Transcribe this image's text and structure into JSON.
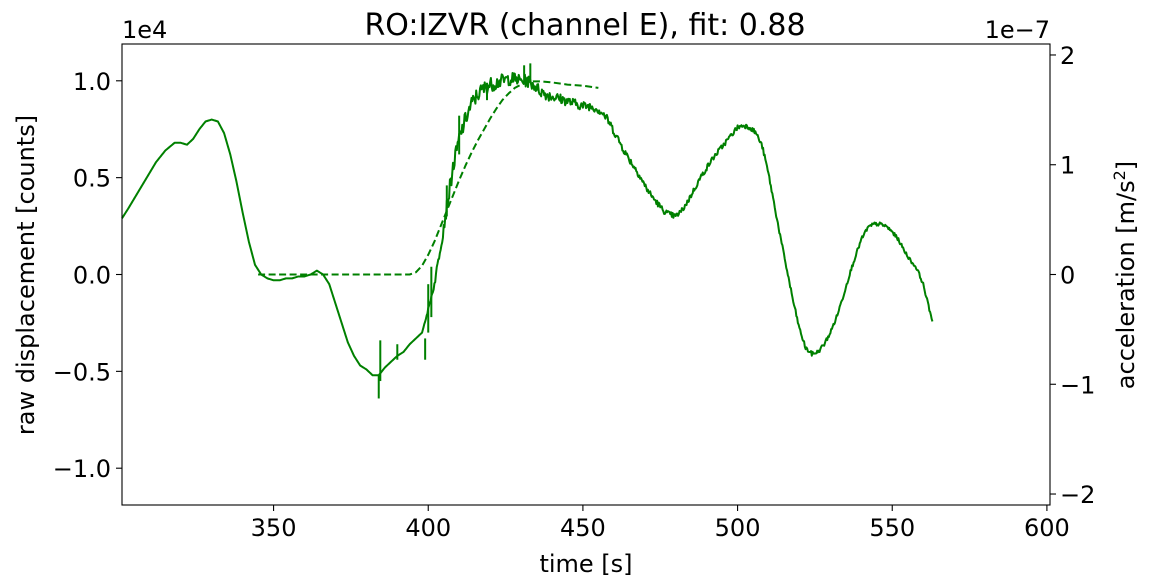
{
  "chart_data": {
    "type": "line",
    "title": "RO:IZVR  (channel E), fit: 0.88",
    "xlabel": "time [s]",
    "ylabel_left": "raw displacement [counts]",
    "ylabel_right": "acceleration [m/s",
    "ylabel_right_sup": "2",
    "ylabel_right_close": "]",
    "offset_left": "1e4",
    "offset_right": "1e−7",
    "xlim": [
      301,
      601
    ],
    "ylim_left": [
      -1.19,
      1.19
    ],
    "ylim_right": [
      -2.1,
      2.1
    ],
    "grid": false,
    "x_ticks": [
      {
        "value": 350,
        "label": "350"
      },
      {
        "value": 400,
        "label": "400"
      },
      {
        "value": 450,
        "label": "450"
      },
      {
        "value": 500,
        "label": "500"
      },
      {
        "value": 550,
        "label": "550"
      },
      {
        "value": 600,
        "label": "600"
      }
    ],
    "y_left_ticks": [
      {
        "value": 1.0,
        "label": "1.0"
      },
      {
        "value": 0.5,
        "label": "0.5"
      },
      {
        "value": 0.0,
        "label": "0.0"
      },
      {
        "value": -0.5,
        "label": "−0.5"
      },
      {
        "value": -1.0,
        "label": "−1.0"
      }
    ],
    "y_right_ticks": [
      {
        "value": 2,
        "label": "2"
      },
      {
        "value": 1,
        "label": "1"
      },
      {
        "value": 0,
        "label": "0"
      },
      {
        "value": -1,
        "label": "−1"
      },
      {
        "value": -2,
        "label": "−2"
      }
    ],
    "series": [
      {
        "axis": "left",
        "style": "solid",
        "color": "#008000",
        "noise": [
          [
            398,
            0.0
          ],
          [
            403,
            0.02
          ],
          [
            405,
            0.04
          ],
          [
            415,
            0.04
          ],
          [
            425,
            0.035
          ],
          [
            435,
            0.03
          ],
          [
            445,
            0.025
          ],
          [
            460,
            0.02
          ],
          [
            475,
            0.015
          ],
          [
            510,
            0.012
          ],
          [
            563,
            0.008
          ]
        ],
        "points": [
          [
            301,
            0.29
          ],
          [
            303,
            0.34
          ],
          [
            306,
            0.42
          ],
          [
            309,
            0.5
          ],
          [
            312,
            0.58
          ],
          [
            315,
            0.64
          ],
          [
            318,
            0.68
          ],
          [
            320,
            0.68
          ],
          [
            322,
            0.67
          ],
          [
            324,
            0.7
          ],
          [
            326,
            0.75
          ],
          [
            328,
            0.79
          ],
          [
            330,
            0.8
          ],
          [
            332,
            0.79
          ],
          [
            334,
            0.73
          ],
          [
            336,
            0.62
          ],
          [
            338,
            0.48
          ],
          [
            340,
            0.32
          ],
          [
            342,
            0.17
          ],
          [
            344,
            0.05
          ],
          [
            346,
            0.0
          ],
          [
            348,
            -0.02
          ],
          [
            350,
            -0.03
          ],
          [
            352,
            -0.03
          ],
          [
            354,
            -0.02
          ],
          [
            356,
            -0.02
          ],
          [
            358,
            -0.01
          ],
          [
            360,
            -0.01
          ],
          [
            362,
            0.0
          ],
          [
            364,
            0.02
          ],
          [
            366,
            0.0
          ],
          [
            368,
            -0.05
          ],
          [
            370,
            -0.15
          ],
          [
            372,
            -0.25
          ],
          [
            374,
            -0.35
          ],
          [
            376,
            -0.42
          ],
          [
            378,
            -0.47
          ],
          [
            380,
            -0.49
          ],
          [
            382,
            -0.52
          ],
          [
            384,
            -0.52
          ],
          [
            386,
            -0.48
          ],
          [
            388,
            -0.45
          ],
          [
            390,
            -0.42
          ],
          [
            392,
            -0.4
          ],
          [
            394,
            -0.36
          ],
          [
            396,
            -0.33
          ],
          [
            398,
            -0.3
          ],
          [
            400,
            -0.18
          ],
          [
            402,
            -0.05
          ],
          [
            404,
            0.15
          ],
          [
            406,
            0.35
          ],
          [
            408,
            0.55
          ],
          [
            410,
            0.7
          ],
          [
            412,
            0.8
          ],
          [
            414,
            0.88
          ],
          [
            416,
            0.93
          ],
          [
            418,
            0.96
          ],
          [
            420,
            0.98
          ],
          [
            422,
            0.99
          ],
          [
            424,
            1.0
          ],
          [
            426,
            1.01
          ],
          [
            428,
            1.01
          ],
          [
            430,
            1.0
          ],
          [
            432,
            1.0
          ],
          [
            434,
            0.98
          ],
          [
            436,
            0.95
          ],
          [
            438,
            0.93
          ],
          [
            440,
            0.92
          ],
          [
            442,
            0.91
          ],
          [
            444,
            0.9
          ],
          [
            446,
            0.89
          ],
          [
            448,
            0.88
          ],
          [
            450,
            0.87
          ],
          [
            452,
            0.87
          ],
          [
            454,
            0.86
          ],
          [
            456,
            0.84
          ],
          [
            458,
            0.8
          ],
          [
            460,
            0.74
          ],
          [
            462,
            0.68
          ],
          [
            464,
            0.62
          ],
          [
            466,
            0.57
          ],
          [
            468,
            0.52
          ],
          [
            470,
            0.46
          ],
          [
            472,
            0.41
          ],
          [
            474,
            0.37
          ],
          [
            476,
            0.33
          ],
          [
            478,
            0.31
          ],
          [
            480,
            0.3
          ],
          [
            482,
            0.33
          ],
          [
            484,
            0.38
          ],
          [
            486,
            0.44
          ],
          [
            488,
            0.5
          ],
          [
            490,
            0.55
          ],
          [
            492,
            0.6
          ],
          [
            494,
            0.64
          ],
          [
            496,
            0.68
          ],
          [
            498,
            0.72
          ],
          [
            500,
            0.76
          ],
          [
            502,
            0.77
          ],
          [
            504,
            0.76
          ],
          [
            506,
            0.73
          ],
          [
            508,
            0.66
          ],
          [
            510,
            0.52
          ],
          [
            512,
            0.35
          ],
          [
            514,
            0.18
          ],
          [
            516,
            0.02
          ],
          [
            518,
            -0.14
          ],
          [
            520,
            -0.28
          ],
          [
            522,
            -0.38
          ],
          [
            524,
            -0.41
          ],
          [
            526,
            -0.4
          ],
          [
            528,
            -0.36
          ],
          [
            530,
            -0.3
          ],
          [
            532,
            -0.22
          ],
          [
            534,
            -0.12
          ],
          [
            536,
            -0.01
          ],
          [
            538,
            0.09
          ],
          [
            540,
            0.18
          ],
          [
            542,
            0.24
          ],
          [
            544,
            0.26
          ],
          [
            546,
            0.26
          ],
          [
            548,
            0.25
          ],
          [
            550,
            0.22
          ],
          [
            552,
            0.18
          ],
          [
            554,
            0.12
          ],
          [
            556,
            0.07
          ],
          [
            558,
            0.03
          ],
          [
            560,
            -0.05
          ],
          [
            562,
            -0.18
          ],
          [
            563,
            -0.24
          ]
        ],
        "spikes": [
          [
            384,
            -0.52,
            -0.64
          ],
          [
            384.5,
            -0.34,
            -0.55
          ],
          [
            390,
            -0.44,
            -0.36
          ],
          [
            399,
            -0.33,
            -0.44
          ],
          [
            400,
            -0.05,
            -0.3
          ],
          [
            401,
            0.04,
            -0.22
          ],
          [
            406,
            0.46,
            0.3
          ],
          [
            410,
            0.82,
            0.62
          ],
          [
            419,
            0.99,
            0.9
          ],
          [
            431,
            1.08,
            0.98
          ],
          [
            433,
            1.09,
            0.99
          ]
        ]
      },
      {
        "axis": "right",
        "style": "dashed",
        "color": "#008000",
        "points": [
          [
            345,
            0.0
          ],
          [
            360,
            0.0
          ],
          [
            375,
            0.0
          ],
          [
            390,
            0.0
          ],
          [
            394,
            0.0
          ],
          [
            396,
            0.02
          ],
          [
            398,
            0.08
          ],
          [
            400,
            0.18
          ],
          [
            402,
            0.3
          ],
          [
            404,
            0.44
          ],
          [
            406,
            0.58
          ],
          [
            408,
            0.72
          ],
          [
            410,
            0.86
          ],
          [
            412,
            0.99
          ],
          [
            414,
            1.11
          ],
          [
            416,
            1.22
          ],
          [
            418,
            1.32
          ],
          [
            420,
            1.42
          ],
          [
            422,
            1.51
          ],
          [
            424,
            1.59
          ],
          [
            426,
            1.65
          ],
          [
            428,
            1.7
          ],
          [
            430,
            1.73
          ],
          [
            432,
            1.75
          ],
          [
            434,
            1.76
          ],
          [
            436,
            1.76
          ],
          [
            440,
            1.75
          ],
          [
            445,
            1.73
          ],
          [
            450,
            1.72
          ],
          [
            455,
            1.7
          ]
        ]
      }
    ]
  }
}
